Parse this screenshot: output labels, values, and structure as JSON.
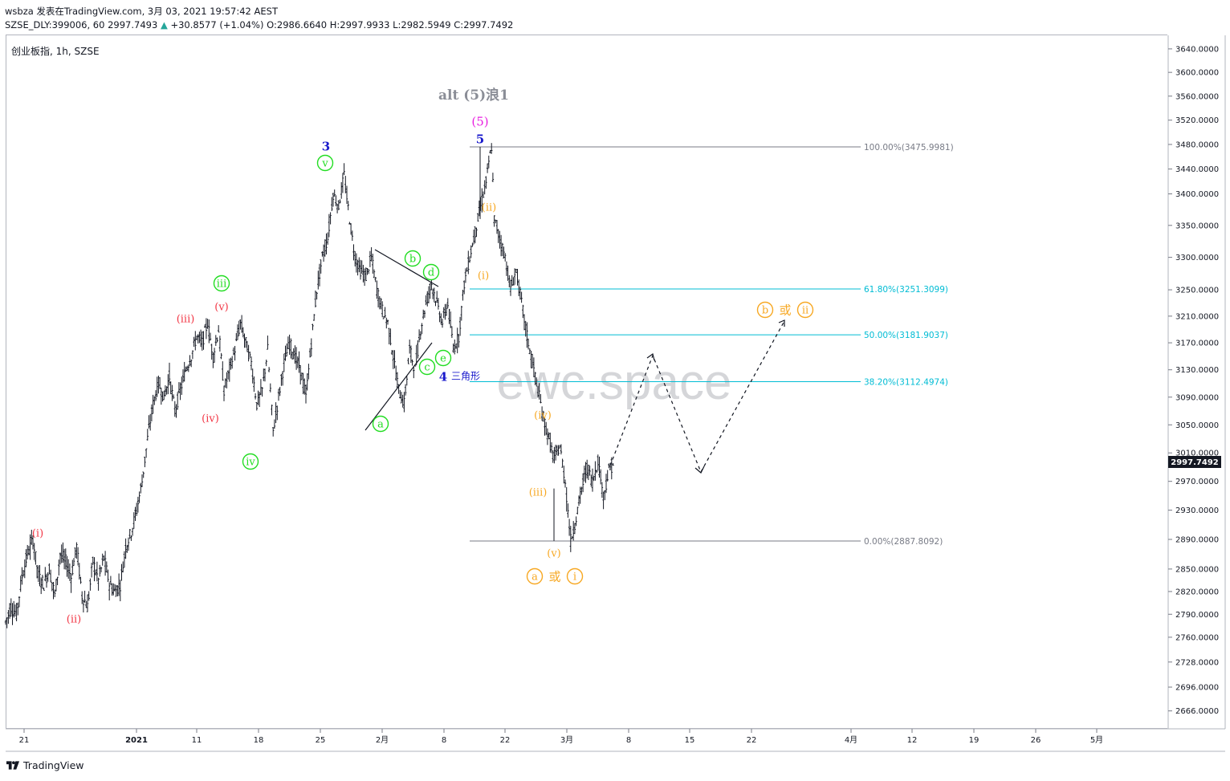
{
  "header": {
    "line1": "wsbza 发表在TradingView.com, 3月 03, 2021 19:57:42 AEST",
    "symbol": "SZSE_DLY:399006, 60",
    "last": "2997.7493",
    "change_arrow": "▲",
    "change": "+30.8577 (+1.04%)",
    "o_label": "O:",
    "o": "2986.6640",
    "h_label": "H:",
    "h": "2997.9933",
    "l_label": "L:",
    "l": "2982.5949",
    "c_label": "C:",
    "c": "2997.7492"
  },
  "symbol_label": "创业板指, 1h, SZSE",
  "watermark": "ewc.space",
  "logo_text": "TradingView",
  "price_axis": {
    "ticks": [
      "3640.0000",
      "3600.0000",
      "3560.0000",
      "3520.0000",
      "3480.0000",
      "3440.0000",
      "3400.0000",
      "3350.0000",
      "3300.0000",
      "3250.0000",
      "3210.0000",
      "3170.0000",
      "3130.0000",
      "3090.0000",
      "3050.0000",
      "3010.0000",
      "2970.0000",
      "2930.0000",
      "2890.0000",
      "2850.0000",
      "2820.0000",
      "2790.0000",
      "2760.0000",
      "2728.0000",
      "2696.0000",
      "2666.0000"
    ],
    "last_price_label": "2997.7492",
    "last_price": 2997.7492
  },
  "time_axis": {
    "ticks": [
      "21",
      "2021",
      "11",
      "18",
      "25",
      "2月",
      "8",
      "22",
      "3月",
      "8",
      "15",
      "22",
      "4月",
      "12",
      "19",
      "26",
      "5月"
    ]
  },
  "colors": {
    "candle": "#131722",
    "fib": "#00bcd4",
    "fib_edge": "#787b86",
    "wave_red": "#f23645",
    "wave_green": "#22dd22",
    "wave_orange": "#f7a823",
    "wave_blue": "#1a1acc",
    "wave_magenta": "#e91ee0",
    "alt_gray": "#8a8d96"
  },
  "chart_data": {
    "type": "candlestick",
    "title": "创业板指, 1h, SZSE",
    "y_range": [
      2640,
      3660
    ],
    "scale": "log",
    "fibonacci": [
      {
        "label": "100.00%(3475.9981)",
        "level": 3475.9981
      },
      {
        "label": "61.80%(3251.3099)",
        "level": 3251.3099
      },
      {
        "label": "50.00%(3181.9037)",
        "level": 3181.9037
      },
      {
        "label": "38.20%(3112.4974)",
        "level": 3112.4974
      },
      {
        "label": "0.00%(2887.8092)",
        "level": 2887.8092
      }
    ],
    "price_path": [
      [
        0,
        2780
      ],
      [
        4,
        2800
      ],
      [
        8,
        2790
      ],
      [
        12,
        2840
      ],
      [
        16,
        2870
      ],
      [
        20,
        2890
      ],
      [
        24,
        2840
      ],
      [
        28,
        2830
      ],
      [
        32,
        2850
      ],
      [
        36,
        2815
      ],
      [
        40,
        2870
      ],
      [
        44,
        2860
      ],
      [
        48,
        2840
      ],
      [
        52,
        2880
      ],
      [
        56,
        2815
      ],
      [
        60,
        2800
      ],
      [
        64,
        2860
      ],
      [
        68,
        2835
      ],
      [
        72,
        2865
      ],
      [
        76,
        2830
      ],
      [
        80,
        2820
      ],
      [
        84,
        2830
      ],
      [
        88,
        2880
      ],
      [
        92,
        2900
      ],
      [
        96,
        2930
      ],
      [
        100,
        2970
      ],
      [
        104,
        3030
      ],
      [
        108,
        3080
      ],
      [
        112,
        3110
      ],
      [
        116,
        3090
      ],
      [
        120,
        3120
      ],
      [
        124,
        3070
      ],
      [
        128,
        3100
      ],
      [
        132,
        3130
      ],
      [
        136,
        3150
      ],
      [
        140,
        3180
      ],
      [
        144,
        3170
      ],
      [
        148,
        3200
      ],
      [
        152,
        3150
      ],
      [
        156,
        3190
      ],
      [
        160,
        3100
      ],
      [
        164,
        3130
      ],
      [
        168,
        3160
      ],
      [
        172,
        3200
      ],
      [
        176,
        3170
      ],
      [
        180,
        3140
      ],
      [
        184,
        3080
      ],
      [
        188,
        3100
      ],
      [
        192,
        3160
      ],
      [
        196,
        3040
      ],
      [
        200,
        3090
      ],
      [
        204,
        3140
      ],
      [
        208,
        3170
      ],
      [
        212,
        3150
      ],
      [
        216,
        3130
      ],
      [
        220,
        3090
      ],
      [
        224,
        3170
      ],
      [
        228,
        3250
      ],
      [
        232,
        3300
      ],
      [
        236,
        3330
      ],
      [
        240,
        3400
      ],
      [
        244,
        3380
      ],
      [
        248,
        3430
      ],
      [
        252,
        3360
      ],
      [
        256,
        3300
      ],
      [
        260,
        3280
      ],
      [
        264,
        3270
      ],
      [
        268,
        3300
      ],
      [
        272,
        3250
      ],
      [
        276,
        3220
      ],
      [
        280,
        3200
      ],
      [
        284,
        3150
      ],
      [
        288,
        3100
      ],
      [
        292,
        3080
      ],
      [
        296,
        3160
      ],
      [
        300,
        3130
      ],
      [
        304,
        3190
      ],
      [
        308,
        3230
      ],
      [
        312,
        3260
      ],
      [
        316,
        3230
      ],
      [
        320,
        3200
      ],
      [
        324,
        3230
      ],
      [
        328,
        3160
      ],
      [
        332,
        3180
      ],
      [
        336,
        3260
      ],
      [
        340,
        3300
      ],
      [
        344,
        3340
      ],
      [
        348,
        3380
      ],
      [
        352,
        3420
      ],
      [
        356,
        3476
      ],
      [
        358,
        3360
      ],
      [
        362,
        3330
      ],
      [
        366,
        3300
      ],
      [
        370,
        3250
      ],
      [
        374,
        3280
      ],
      [
        378,
        3230
      ],
      [
        382,
        3180
      ],
      [
        386,
        3140
      ],
      [
        390,
        3100
      ],
      [
        394,
        3060
      ],
      [
        398,
        3030
      ],
      [
        402,
        3000
      ],
      [
        406,
        3020
      ],
      [
        410,
        2970
      ],
      [
        414,
        2888
      ],
      [
        418,
        2920
      ],
      [
        422,
        2960
      ],
      [
        426,
        2990
      ],
      [
        430,
        2970
      ],
      [
        434,
        3000
      ],
      [
        438,
        2950
      ],
      [
        442,
        2985
      ],
      [
        446,
        2998
      ]
    ],
    "wave_labels": [
      {
        "text": "(i)",
        "color": "red"
      },
      {
        "text": "(ii)",
        "color": "red"
      },
      {
        "text": "(iii)",
        "color": "red"
      },
      {
        "text": "(iv)",
        "color": "red"
      },
      {
        "text": "(v)",
        "color": "red"
      },
      {
        "text": "iii",
        "color": "green"
      },
      {
        "text": "iv",
        "color": "green"
      },
      {
        "text": "v",
        "color": "green"
      },
      {
        "text": "3",
        "color": "blue"
      },
      {
        "text": "a",
        "color": "green"
      },
      {
        "text": "b",
        "color": "green"
      },
      {
        "text": "c",
        "color": "green"
      },
      {
        "text": "d",
        "color": "green"
      },
      {
        "text": "e",
        "color": "green"
      },
      {
        "text": "4",
        "color": "blue"
      },
      {
        "text": "三角形",
        "color": "blue"
      },
      {
        "text": "5",
        "color": "blue"
      },
      {
        "text": "(5)",
        "color": "magenta"
      },
      {
        "text": "alt (5)浪1",
        "color": "gray"
      },
      {
        "text": "(ii)",
        "color": "orange"
      },
      {
        "text": "(i)",
        "color": "orange"
      },
      {
        "text": "(iv)",
        "color": "orange"
      },
      {
        "text": "(iii)",
        "color": "orange"
      },
      {
        "text": "(v)",
        "color": "orange"
      },
      {
        "text": "a",
        "color": "orange"
      },
      {
        "text": "或",
        "color": "orange"
      },
      {
        "text": "i",
        "color": "orange"
      },
      {
        "text": "b",
        "color": "orange"
      },
      {
        "text": "或",
        "color": "orange"
      },
      {
        "text": "ii",
        "color": "orange"
      }
    ]
  }
}
